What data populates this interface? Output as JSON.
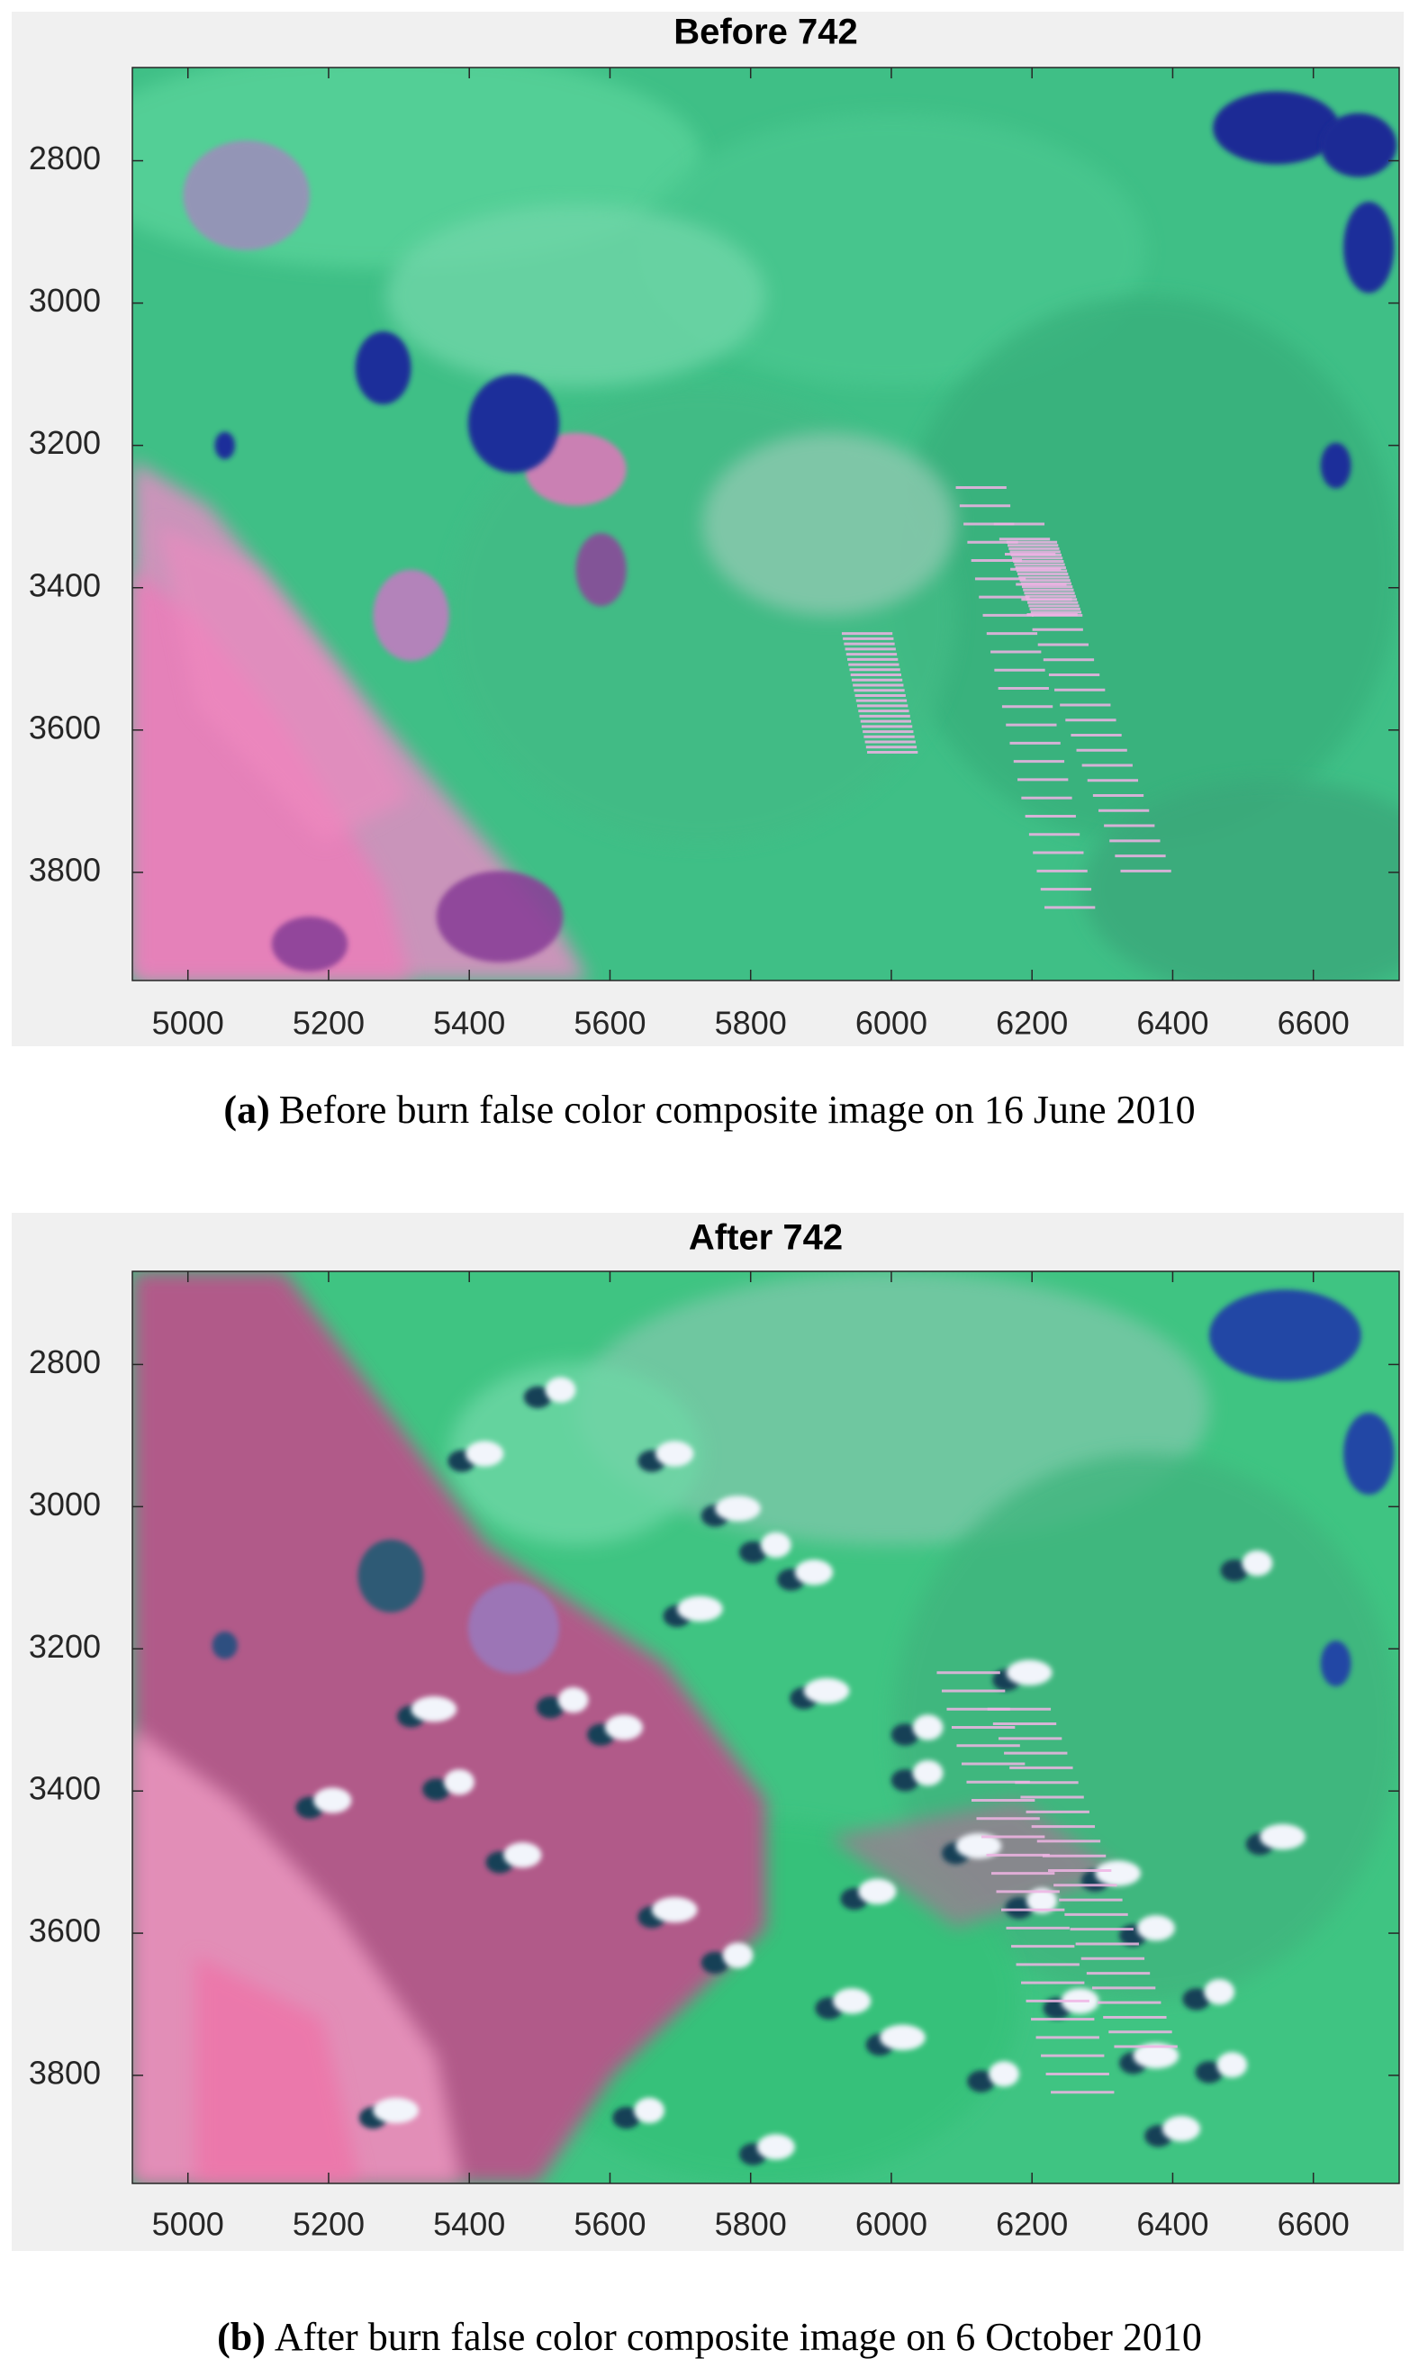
{
  "chart_data": [
    {
      "type": "image",
      "title": "Before 742",
      "caption_label": "(a)",
      "caption": "Before burn false color composite image on 16 June 2010",
      "xlim": [
        4921,
        6722
      ],
      "xticks": [
        5000,
        5200,
        5400,
        5600,
        5800,
        6000,
        6200,
        6400,
        6600
      ],
      "ylim": [
        2669,
        3952
      ],
      "y_reversed": true,
      "yticks": [
        2800,
        3000,
        3200,
        3400,
        3600,
        3800
      ]
    },
    {
      "type": "image",
      "title": "After 742",
      "caption_label": "(b)",
      "caption": "After burn false color composite image on 6 October 2010",
      "xlim": [
        4921,
        6722
      ],
      "xticks": [
        5000,
        5200,
        5400,
        5600,
        5800,
        6000,
        6200,
        6400,
        6600
      ],
      "ylim": [
        2669,
        3952
      ],
      "y_reversed": true,
      "yticks": [
        2800,
        3000,
        3200,
        3400,
        3600,
        3800
      ]
    }
  ]
}
